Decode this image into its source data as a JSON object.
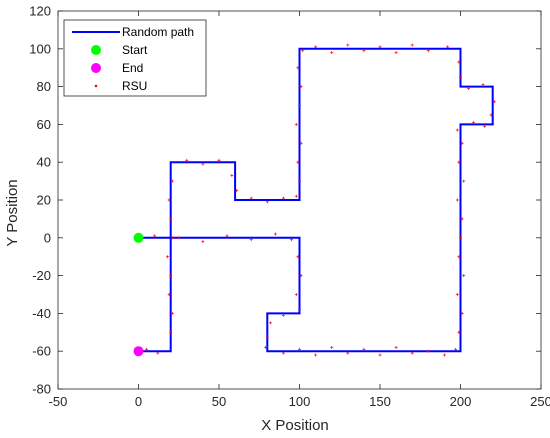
{
  "chart_data": {
    "type": "line",
    "xlabel": "X Position",
    "ylabel": "Y Position",
    "xlim": [
      -50,
      250
    ],
    "ylim": [
      -80,
      120
    ],
    "xticks": [
      -50,
      0,
      50,
      100,
      150,
      200,
      250
    ],
    "yticks": [
      -80,
      -60,
      -40,
      -20,
      0,
      20,
      40,
      60,
      80,
      100,
      120
    ],
    "grid": false,
    "legend_position": "top-left",
    "series": [
      {
        "name": "Random path",
        "kind": "line",
        "color": "#0000ff",
        "points": [
          [
            0,
            0
          ],
          [
            100,
            0
          ],
          [
            100,
            -40
          ],
          [
            80,
            -40
          ],
          [
            80,
            -60
          ],
          [
            200,
            -60
          ],
          [
            200,
            60
          ],
          [
            220,
            60
          ],
          [
            220,
            80
          ],
          [
            200,
            80
          ],
          [
            200,
            100
          ],
          [
            100,
            100
          ],
          [
            100,
            20
          ],
          [
            60,
            20
          ],
          [
            60,
            40
          ],
          [
            20,
            40
          ],
          [
            20,
            -60
          ],
          [
            0,
            -60
          ]
        ]
      },
      {
        "name": "Start",
        "kind": "marker",
        "color": "#00ff00",
        "points": [
          [
            0,
            0
          ]
        ]
      },
      {
        "name": "End",
        "kind": "marker",
        "color": "#ff00ff",
        "points": [
          [
            0,
            -60
          ]
        ]
      },
      {
        "name": "RSU",
        "kind": "scatter",
        "color": "#ff0000",
        "points": [
          [
            10,
            1
          ],
          [
            25,
            0
          ],
          [
            40,
            -2
          ],
          [
            55,
            1
          ],
          [
            70,
            -1
          ],
          [
            85,
            2
          ],
          [
            95,
            -1
          ],
          [
            99,
            -10
          ],
          [
            101,
            -20
          ],
          [
            98,
            -30
          ],
          [
            100,
            -38
          ],
          [
            90,
            -41
          ],
          [
            82,
            -45
          ],
          [
            80,
            -52
          ],
          [
            79,
            -58
          ],
          [
            90,
            -61
          ],
          [
            100,
            -59
          ],
          [
            110,
            -62
          ],
          [
            120,
            -58
          ],
          [
            130,
            -61
          ],
          [
            140,
            -59
          ],
          [
            150,
            -62
          ],
          [
            160,
            -58
          ],
          [
            170,
            -61
          ],
          [
            180,
            -60
          ],
          [
            190,
            -62
          ],
          [
            197,
            -59
          ],
          [
            199,
            -50
          ],
          [
            201,
            -40
          ],
          [
            198,
            -30
          ],
          [
            202,
            -20
          ],
          [
            199,
            -10
          ],
          [
            200,
            0
          ],
          [
            201,
            10
          ],
          [
            198,
            20
          ],
          [
            202,
            30
          ],
          [
            199,
            40
          ],
          [
            201,
            50
          ],
          [
            198,
            57
          ],
          [
            208,
            61
          ],
          [
            215,
            59
          ],
          [
            219,
            65
          ],
          [
            221,
            72
          ],
          [
            214,
            81
          ],
          [
            205,
            79
          ],
          [
            200,
            85
          ],
          [
            199,
            93
          ],
          [
            192,
            101
          ],
          [
            180,
            99
          ],
          [
            170,
            102
          ],
          [
            160,
            98
          ],
          [
            150,
            101
          ],
          [
            140,
            99
          ],
          [
            130,
            102
          ],
          [
            120,
            98
          ],
          [
            110,
            101
          ],
          [
            102,
            99
          ],
          [
            99,
            90
          ],
          [
            101,
            80
          ],
          [
            100,
            70
          ],
          [
            98,
            60
          ],
          [
            101,
            50
          ],
          [
            99,
            40
          ],
          [
            100,
            30
          ],
          [
            98,
            22
          ],
          [
            90,
            21
          ],
          [
            80,
            19
          ],
          [
            70,
            21
          ],
          [
            61,
            25
          ],
          [
            58,
            33
          ],
          [
            50,
            41
          ],
          [
            40,
            39
          ],
          [
            30,
            41
          ],
          [
            21,
            30
          ],
          [
            19,
            20
          ],
          [
            20,
            10
          ],
          [
            21,
            0
          ],
          [
            18,
            -10
          ],
          [
            20,
            -20
          ],
          [
            19,
            -30
          ],
          [
            21,
            -40
          ],
          [
            20,
            -50
          ],
          [
            12,
            -61
          ],
          [
            5,
            -59
          ]
        ]
      }
    ]
  },
  "legend": {
    "entries": [
      {
        "label": "Random path",
        "symbol": "line",
        "color": "#0000ff"
      },
      {
        "label": "Start",
        "symbol": "circle",
        "color": "#00ff00"
      },
      {
        "label": "End",
        "symbol": "circle",
        "color": "#ff00ff"
      },
      {
        "label": "RSU",
        "symbol": "dot",
        "color": "#ff0000"
      }
    ]
  },
  "colors": {
    "axes": "#262626",
    "background": "#ffffff"
  }
}
